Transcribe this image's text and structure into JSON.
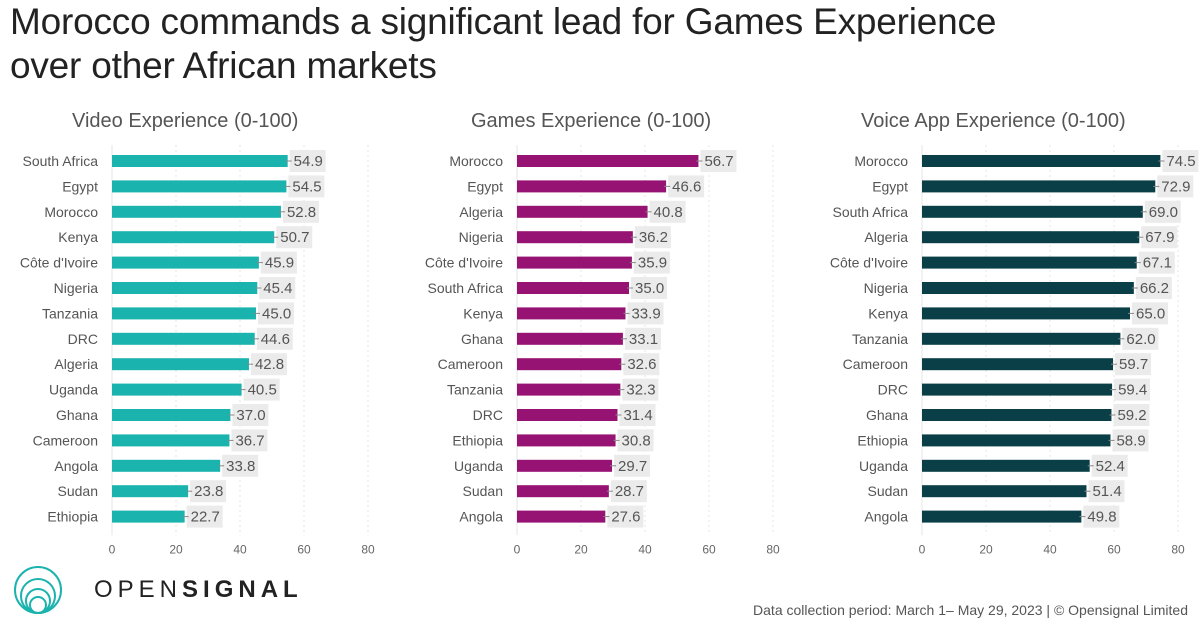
{
  "title_line1": "Morocco commands a significant lead for Games Experience",
  "title_line2": "over other African markets",
  "footer": {
    "logo_light": "OPEN",
    "logo_bold": "SIGNAL",
    "note": "Data collection period: March 1– May 29, 2023 |  © Opensignal Limited"
  },
  "colors": {
    "video": "#1ab3ad",
    "games": "#961273",
    "voice": "#0a3f47",
    "label_bg": "#ebebeb"
  },
  "chart_data": [
    {
      "type": "bar",
      "orientation": "horizontal",
      "title": "Video Experience (0-100)",
      "categories": [
        "South Africa",
        "Egypt",
        "Morocco",
        "Kenya",
        "Côte d'Ivoire",
        "Nigeria",
        "Tanzania",
        "DRC",
        "Algeria",
        "Uganda",
        "Ghana",
        "Cameroon",
        "Angola",
        "Sudan",
        "Ethiopia"
      ],
      "values": [
        54.9,
        54.5,
        52.8,
        50.7,
        45.9,
        45.4,
        45.0,
        44.6,
        42.8,
        40.5,
        37.0,
        36.7,
        33.8,
        23.8,
        22.7
      ],
      "xlim": [
        0,
        80
      ],
      "xticks": [
        0,
        20,
        40,
        60,
        80
      ],
      "grid": true,
      "color_key": "video"
    },
    {
      "type": "bar",
      "orientation": "horizontal",
      "title": "Games Experience (0-100)",
      "categories": [
        "Morocco",
        "Egypt",
        "Algeria",
        "Nigeria",
        "Côte d'Ivoire",
        "South Africa",
        "Kenya",
        "Ghana",
        "Cameroon",
        "Tanzania",
        "DRC",
        "Ethiopia",
        "Uganda",
        "Sudan",
        "Angola"
      ],
      "values": [
        56.7,
        46.6,
        40.8,
        36.2,
        35.9,
        35.0,
        33.9,
        33.1,
        32.6,
        32.3,
        31.4,
        30.8,
        29.7,
        28.7,
        27.6
      ],
      "xlim": [
        0,
        80
      ],
      "xticks": [
        0,
        20,
        40,
        60,
        80
      ],
      "grid": true,
      "color_key": "games"
    },
    {
      "type": "bar",
      "orientation": "horizontal",
      "title": "Voice App Experience (0-100)",
      "categories": [
        "Morocco",
        "Egypt",
        "South Africa",
        "Algeria",
        "Côte d'Ivoire",
        "Nigeria",
        "Kenya",
        "Tanzania",
        "Cameroon",
        "DRC",
        "Ghana",
        "Ethiopia",
        "Uganda",
        "Sudan",
        "Angola"
      ],
      "values": [
        74.5,
        72.9,
        69.0,
        67.9,
        67.1,
        66.2,
        65.0,
        62.0,
        59.7,
        59.4,
        59.2,
        58.9,
        52.4,
        51.4,
        49.8
      ],
      "xlim": [
        0,
        80
      ],
      "xticks": [
        0,
        20,
        40,
        60,
        80
      ],
      "grid": true,
      "color_key": "voice"
    }
  ]
}
